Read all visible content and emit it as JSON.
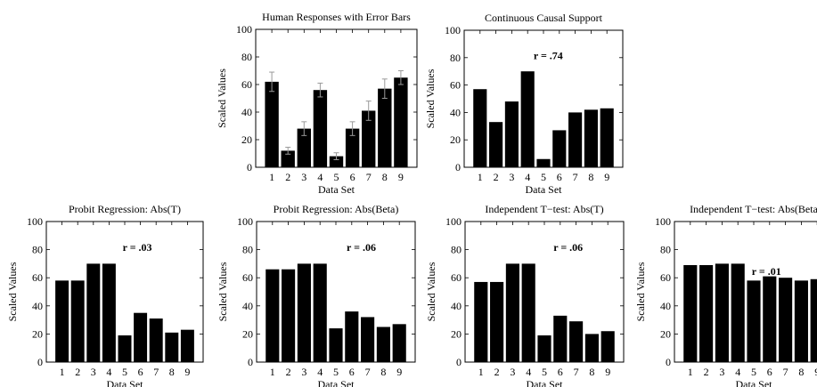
{
  "chart_data": [
    {
      "id": "human",
      "type": "bar",
      "title": "Human Responses with Error Bars",
      "xlabel": "Data Set",
      "ylabel": "Scaled Values",
      "categories": [
        "1",
        "2",
        "3",
        "4",
        "5",
        "6",
        "7",
        "8",
        "9"
      ],
      "values": [
        62,
        12,
        28,
        56,
        8,
        28,
        41,
        57,
        65
      ],
      "errors": [
        7,
        2.5,
        5,
        5,
        2.5,
        5,
        7,
        7,
        5
      ],
      "ylim": [
        0,
        100
      ],
      "yticks": [
        "0",
        "20",
        "40",
        "60",
        "80",
        "100"
      ],
      "annotation": ""
    },
    {
      "id": "ccs",
      "type": "bar",
      "title": "Continuous Causal Support",
      "xlabel": "Data Set",
      "ylabel": "Scaled Values",
      "categories": [
        "1",
        "2",
        "3",
        "4",
        "5",
        "6",
        "7",
        "8",
        "9"
      ],
      "values": [
        57,
        33,
        48,
        70,
        6,
        27,
        40,
        42,
        43
      ],
      "ylim": [
        0,
        100
      ],
      "yticks": [
        "0",
        "20",
        "40",
        "60",
        "80",
        "100"
      ],
      "annotation": "r = .74"
    },
    {
      "id": "probit_t",
      "type": "bar",
      "title": "Probit Regression: Abs(T)",
      "xlabel": "Data Set",
      "ylabel": "Scaled Values",
      "categories": [
        "1",
        "2",
        "3",
        "4",
        "5",
        "6",
        "7",
        "8",
        "9"
      ],
      "values": [
        58,
        58,
        70,
        70,
        19,
        35,
        31,
        21,
        23
      ],
      "ylim": [
        0,
        100
      ],
      "yticks": [
        "0",
        "20",
        "40",
        "60",
        "80",
        "100"
      ],
      "annotation": "r = .03"
    },
    {
      "id": "probit_beta",
      "type": "bar",
      "title": "Probit Regression: Abs(Beta)",
      "xlabel": "Data Set",
      "ylabel": "Scaled Values",
      "categories": [
        "1",
        "2",
        "3",
        "4",
        "5",
        "6",
        "7",
        "8",
        "9"
      ],
      "values": [
        66,
        66,
        70,
        70,
        24,
        36,
        32,
        25,
        27
      ],
      "ylim": [
        0,
        100
      ],
      "yticks": [
        "0",
        "20",
        "40",
        "60",
        "80",
        "100"
      ],
      "annotation": "r = .06"
    },
    {
      "id": "ttest_t",
      "type": "bar",
      "title": "Independent T−test: Abs(T)",
      "xlabel": "Data Set",
      "ylabel": "Scaled Values",
      "categories": [
        "1",
        "2",
        "3",
        "4",
        "5",
        "6",
        "7",
        "8",
        "9"
      ],
      "values": [
        57,
        57,
        70,
        70,
        19,
        33,
        29,
        20,
        22
      ],
      "ylim": [
        0,
        100
      ],
      "yticks": [
        "0",
        "20",
        "40",
        "60",
        "80",
        "100"
      ],
      "annotation": "r = .06"
    },
    {
      "id": "ttest_beta",
      "type": "bar",
      "title": "Independent T−test: Abs(Beta",
      "xlabel": "Data Set",
      "ylabel": "Scaled Values",
      "categories": [
        "1",
        "2",
        "3",
        "4",
        "5",
        "6",
        "7",
        "8",
        "9"
      ],
      "values": [
        69,
        69,
        70,
        70,
        58,
        61,
        60,
        58,
        59
      ],
      "ylim": [
        0,
        100
      ],
      "yticks": [
        "0",
        "20",
        "40",
        "60",
        "80",
        "100"
      ],
      "annotation": "r = .01"
    }
  ]
}
